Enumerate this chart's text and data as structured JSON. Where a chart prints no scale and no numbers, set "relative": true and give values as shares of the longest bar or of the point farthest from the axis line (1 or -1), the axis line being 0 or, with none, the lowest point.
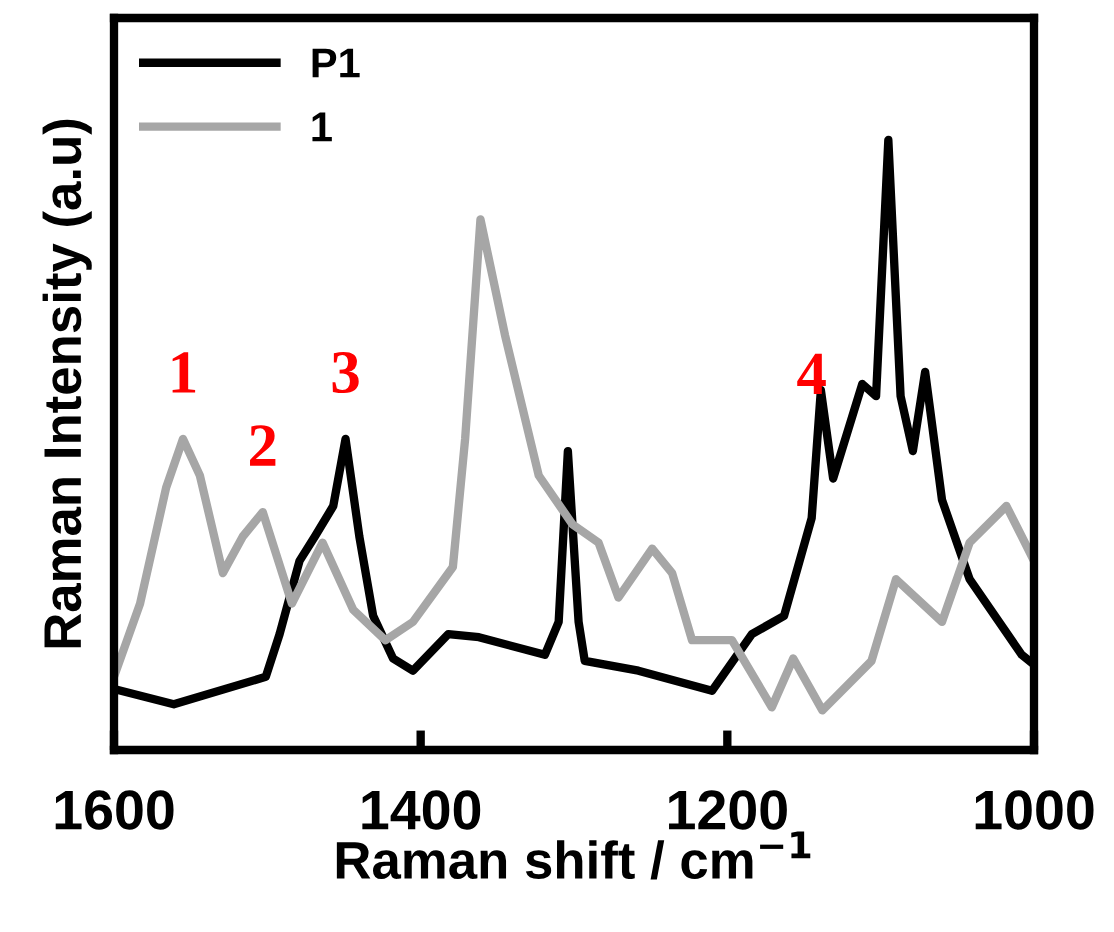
{
  "chart_data": {
    "type": "line",
    "relative": true,
    "xlabel": "Raman shift / cm$^{−1}$",
    "ylabel": "Raman Intensity (a.u)",
    "xlim": [
      1600,
      1000
    ],
    "xticks": [
      1600,
      1400,
      1200,
      1000
    ],
    "tick_labels": "x",
    "legend": "top left",
    "grid": false,
    "marker": "none",
    "line_style": "solid",
    "series": [
      {
        "name": "P1",
        "color": "#000000",
        "x": [
          1600,
          1561,
          1501,
          1492,
          1479,
          1469,
          1457,
          1449,
          1440,
          1431,
          1418,
          1405,
          1382,
          1362,
          1319,
          1310,
          1304,
          1297,
          1293,
          1258,
          1210,
          1184,
          1163,
          1145,
          1139,
          1131,
          1112,
          1103,
          1095,
          1087,
          1079,
          1071,
          1060,
          1042,
          1008,
          1000
        ],
        "values": [
          0.1,
          0.075,
          0.12,
          0.19,
          0.31,
          0.35,
          0.4,
          0.51,
          0.35,
          0.22,
          0.15,
          0.13,
          0.19,
          0.185,
          0.156,
          0.21,
          0.49,
          0.21,
          0.146,
          0.13,
          0.097,
          0.19,
          0.22,
          0.38,
          0.59,
          0.445,
          0.6,
          0.58,
          1.0,
          0.58,
          0.49,
          0.62,
          0.41,
          0.28,
          0.156,
          0.14
        ]
      },
      {
        "name": "1",
        "color": "#a6a6a6",
        "x": [
          1600,
          1583,
          1566,
          1555,
          1544,
          1529,
          1516,
          1503,
          1484,
          1464,
          1444,
          1423,
          1405,
          1379,
          1371,
          1361,
          1345,
          1323,
          1301,
          1284,
          1271,
          1249,
          1236,
          1223,
          1197,
          1171,
          1157,
          1138,
          1106,
          1090,
          1060,
          1042,
          1018,
          1000
        ],
        "values": [
          0.12,
          0.24,
          0.43,
          0.51,
          0.45,
          0.29,
          0.35,
          0.39,
          0.24,
          0.34,
          0.23,
          0.18,
          0.21,
          0.3,
          0.51,
          0.87,
          0.68,
          0.45,
          0.37,
          0.34,
          0.25,
          0.33,
          0.29,
          0.18,
          0.18,
          0.07,
          0.15,
          0.065,
          0.146,
          0.28,
          0.21,
          0.34,
          0.4,
          0.31
        ]
      }
    ],
    "annotations": [
      {
        "text": "1",
        "x": 1555,
        "y": 0.51
      },
      {
        "text": "2",
        "x": 1503,
        "y": 0.39
      },
      {
        "text": "3",
        "x": 1449,
        "y": 0.51
      },
      {
        "text": "4",
        "x": 1145,
        "y": 0.38
      }
    ]
  }
}
